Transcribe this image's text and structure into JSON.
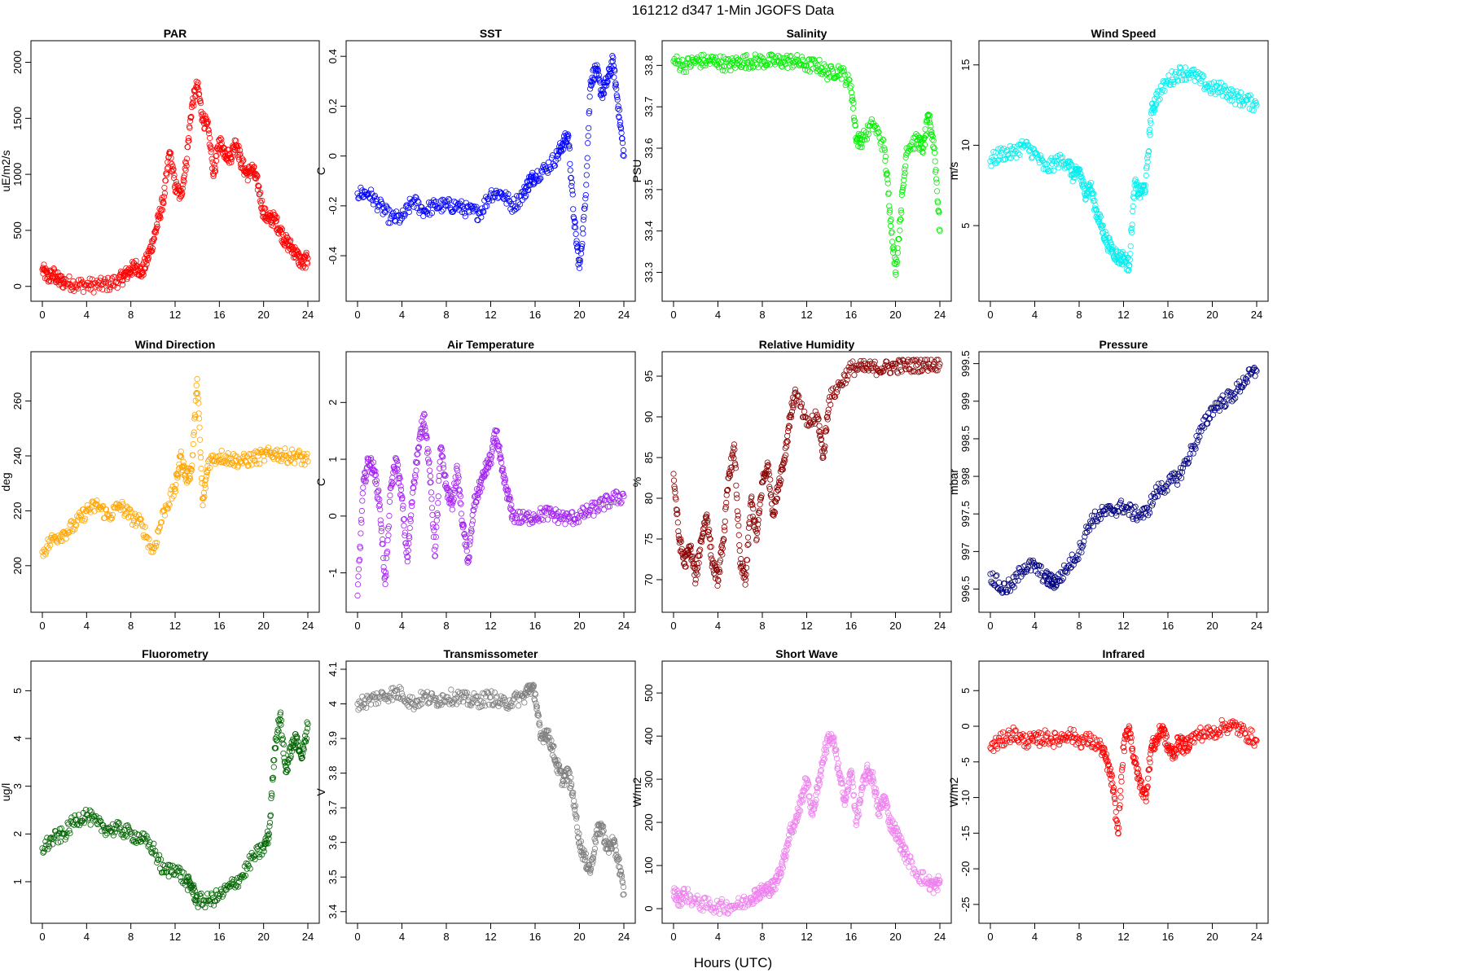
{
  "figure": {
    "title": "161212   d347   1-Min  JGOFS Data",
    "xlabel": "Hours (UTC)"
  },
  "chart_data": [
    {
      "type": "scatter",
      "title": "PAR",
      "ylabel": "uE/m2/s",
      "color": "#ff0000",
      "xlim": [
        0,
        24
      ],
      "ylim": [
        -60,
        2120
      ],
      "xticks": [
        0,
        4,
        8,
        12,
        16,
        20,
        24
      ],
      "yticks": [
        0,
        500,
        1000,
        1500,
        2000
      ],
      "series": [
        {
          "x": [
            0,
            0.5,
            1,
            1.5,
            2,
            3,
            4,
            5,
            6,
            7,
            7.5,
            8,
            8.5,
            9,
            9.5,
            10,
            10.5,
            11,
            11.5,
            12,
            12.5,
            13,
            13.5,
            14,
            14.5,
            15,
            15.5,
            16,
            16.5,
            17,
            17.5,
            18,
            18.5,
            19,
            19.5,
            20,
            20.5,
            21,
            21.5,
            22,
            22.5,
            23,
            23.5,
            24
          ],
          "y": [
            150,
            80,
            110,
            50,
            40,
            20,
            10,
            10,
            20,
            60,
            100,
            150,
            180,
            120,
            250,
            400,
            600,
            800,
            1200,
            900,
            800,
            1100,
            1600,
            1800,
            1500,
            1400,
            1000,
            1300,
            1200,
            1150,
            1300,
            1100,
            1000,
            1050,
            900,
            650,
            600,
            600,
            500,
            400,
            350,
            280,
            200,
            250
          ]
        }
      ]
    },
    {
      "type": "scatter",
      "title": "SST",
      "ylabel": "C",
      "color": "#0000ff",
      "xlim": [
        0,
        24
      ],
      "ylim": [
        -0.55,
        0.43
      ],
      "xticks": [
        0,
        4,
        8,
        12,
        16,
        20,
        24
      ],
      "yticks": [
        -0.4,
        -0.2,
        0.0,
        0.2,
        0.4
      ],
      "series": [
        {
          "x": [
            0,
            1,
            2,
            3,
            4,
            5,
            6,
            7,
            8,
            9,
            10,
            11,
            12,
            13,
            14,
            15,
            15.5,
            16,
            17,
            18,
            18.5,
            19,
            19.5,
            20,
            20.5,
            21,
            21.5,
            22,
            22.5,
            23,
            23.5,
            24
          ],
          "y": [
            -0.15,
            -0.15,
            -0.2,
            -0.25,
            -0.25,
            -0.18,
            -0.22,
            -0.2,
            -0.2,
            -0.2,
            -0.22,
            -0.23,
            -0.15,
            -0.15,
            -0.2,
            -0.15,
            -0.1,
            -0.08,
            -0.05,
            0.0,
            0.05,
            0.08,
            -0.25,
            -0.45,
            -0.2,
            0.3,
            0.35,
            0.25,
            0.3,
            0.38,
            0.2,
            0.0
          ]
        }
      ]
    },
    {
      "type": "scatter",
      "title": "Salinity",
      "ylabel": "PSU",
      "color": "#00ee00",
      "xlim": [
        0,
        24
      ],
      "ylim": [
        33.25,
        33.84
      ],
      "xticks": [
        0,
        4,
        8,
        12,
        16,
        20,
        24
      ],
      "yticks": [
        33.3,
        33.4,
        33.5,
        33.6,
        33.7,
        33.8
      ],
      "series": [
        {
          "x": [
            0,
            1,
            2,
            3,
            4,
            5,
            6,
            7,
            8,
            9,
            10,
            11,
            12,
            13,
            14,
            15,
            16,
            16.5,
            17,
            18,
            19,
            19.5,
            20,
            20.5,
            21,
            22,
            22.5,
            23,
            23.5,
            24
          ],
          "y": [
            33.81,
            33.8,
            33.81,
            33.81,
            33.81,
            33.8,
            33.81,
            33.81,
            33.81,
            33.81,
            33.81,
            33.81,
            33.8,
            33.8,
            33.78,
            33.79,
            33.75,
            33.62,
            33.62,
            33.66,
            33.6,
            33.45,
            33.3,
            33.45,
            33.6,
            33.62,
            33.6,
            33.68,
            33.6,
            33.4
          ]
        }
      ]
    },
    {
      "type": "scatter",
      "title": "Wind Speed",
      "ylabel": "m/s",
      "color": "#00eeee",
      "xlim": [
        0,
        24
      ],
      "ylim": [
        0.8,
        16.0
      ],
      "xticks": [
        0,
        4,
        8,
        12,
        16,
        20,
        24
      ],
      "yticks": [
        5,
        10,
        15
      ],
      "series": [
        {
          "x": [
            0,
            1,
            2,
            3,
            4,
            5,
            6,
            7,
            7.5,
            8,
            8.5,
            9,
            9.5,
            10,
            10.5,
            11,
            11.5,
            12,
            12.5,
            13,
            13.5,
            14,
            14.5,
            15,
            16,
            17,
            18,
            19,
            20,
            21,
            22,
            23,
            24
          ],
          "y": [
            9,
            9.5,
            9.5,
            10,
            9.5,
            8.5,
            9,
            9,
            8,
            8.5,
            7,
            7.5,
            6,
            5,
            4,
            3.5,
            3,
            3,
            2.5,
            7.5,
            7,
            7.5,
            12,
            13,
            14,
            14.5,
            14.5,
            14,
            13.5,
            13.5,
            13,
            12.8,
            12.5
          ]
        }
      ]
    },
    {
      "type": "scatter",
      "title": "Wind Direction",
      "ylabel": "deg",
      "color": "#ffa500",
      "xlim": [
        0,
        24
      ],
      "ylim": [
        186,
        275
      ],
      "xticks": [
        0,
        4,
        8,
        12,
        16,
        20,
        24
      ],
      "yticks": [
        200,
        220,
        240,
        260
      ],
      "series": [
        {
          "x": [
            0,
            1,
            2,
            3,
            4,
            5,
            6,
            7,
            8,
            9,
            10,
            11,
            12,
            12.5,
            13,
            13.5,
            14,
            14.5,
            15,
            16,
            17,
            18,
            19,
            20,
            21,
            22,
            23,
            24
          ],
          "y": [
            205,
            210,
            212,
            215,
            220,
            222,
            218,
            222,
            218,
            215,
            205,
            220,
            228,
            240,
            232,
            235,
            268,
            222,
            238,
            240,
            239,
            238,
            239,
            240,
            241,
            240,
            240,
            238
          ]
        }
      ]
    },
    {
      "type": "scatter",
      "title": "Air Temperature",
      "ylabel": "C",
      "color": "#a020f0",
      "xlim": [
        0,
        24
      ],
      "ylim": [
        -1.55,
        2.75
      ],
      "xticks": [
        0,
        4,
        8,
        12,
        16,
        20,
        24
      ],
      "yticks": [
        -1,
        0,
        1,
        2
      ],
      "series": [
        {
          "x": [
            0,
            0.5,
            1,
            1.5,
            2,
            2.5,
            3,
            3.5,
            4,
            4.5,
            5,
            5.5,
            6,
            6.5,
            7,
            7.5,
            8,
            8.5,
            9,
            9.5,
            10,
            10.5,
            11,
            11.5,
            12,
            12.5,
            13,
            13.5,
            14,
            15,
            16,
            17,
            18,
            19,
            20,
            21,
            22,
            23,
            24
          ],
          "y": [
            -1.4,
            0.5,
            1.0,
            0.8,
            0.2,
            -1.2,
            0.5,
            1.0,
            0.3,
            -0.8,
            0.5,
            1.2,
            1.8,
            0.8,
            -0.7,
            1.2,
            0.5,
            0.2,
            0.8,
            -0.2,
            -0.8,
            0.2,
            0.5,
            0.8,
            1.0,
            1.5,
            0.8,
            0.4,
            0.0,
            -0.05,
            0.0,
            0.05,
            0.0,
            -0.05,
            0.0,
            0.1,
            0.2,
            0.3,
            0.35
          ]
        }
      ]
    },
    {
      "type": "scatter",
      "title": "Relative Humidity",
      "ylabel": "%",
      "color": "#8b0000",
      "xlim": [
        0,
        24
      ],
      "ylim": [
        67,
        97
      ],
      "xticks": [
        0,
        4,
        8,
        12,
        16,
        20,
        24
      ],
      "yticks": [
        70,
        75,
        80,
        85,
        90,
        95
      ],
      "series": [
        {
          "x": [
            0,
            0.5,
            1,
            1.5,
            2,
            2.5,
            3,
            3.5,
            4,
            4.5,
            5,
            5.5,
            6,
            6.5,
            7,
            7.5,
            8,
            8.5,
            9,
            9.5,
            10,
            10.5,
            11,
            12,
            13,
            13.5,
            14,
            15,
            16,
            17,
            18,
            19,
            20,
            21,
            22,
            23,
            24
          ],
          "y": [
            83,
            75,
            72,
            74,
            70,
            75,
            78,
            72,
            70,
            75,
            83,
            86,
            72,
            70,
            80,
            75,
            82,
            84,
            78,
            82,
            85,
            90,
            93,
            89,
            90,
            85,
            92,
            94,
            96,
            96,
            96,
            96,
            96.2,
            96.3,
            96.4,
            96.5,
            96.5
          ]
        }
      ]
    },
    {
      "type": "scatter",
      "title": "Pressure",
      "ylabel": "mbar",
      "color": "#000080",
      "xlim": [
        0,
        24
      ],
      "ylim": [
        996.3,
        999.55
      ],
      "xticks": [
        0,
        4,
        8,
        12,
        16,
        20,
        24
      ],
      "yticks": [
        996.5,
        997.0,
        997.5,
        998.0,
        998.5,
        999.0,
        999.5
      ],
      "series": [
        {
          "x": [
            0,
            1,
            2,
            3,
            4,
            5,
            5.5,
            6,
            7,
            8,
            9,
            10,
            11,
            12,
            13,
            14,
            15,
            16,
            17,
            18,
            19,
            20,
            21,
            22,
            23,
            24
          ],
          "y": [
            996.7,
            996.5,
            996.55,
            996.8,
            996.8,
            996.65,
            996.6,
            996.6,
            996.8,
            997.0,
            997.4,
            997.5,
            997.55,
            997.6,
            997.5,
            997.5,
            997.8,
            997.9,
            998.0,
            998.3,
            998.6,
            998.9,
            999.0,
            999.1,
            999.3,
            999.4
          ]
        }
      ]
    },
    {
      "type": "scatter",
      "title": "Fluorometry",
      "ylabel": "ug/l",
      "color": "#006400",
      "xlim": [
        0,
        24
      ],
      "ylim": [
        0.3,
        5.45
      ],
      "xticks": [
        0,
        4,
        8,
        12,
        16,
        20,
        24
      ],
      "yticks": [
        1,
        2,
        3,
        4,
        5
      ],
      "series": [
        {
          "x": [
            0,
            1,
            2,
            3,
            4,
            5,
            6,
            7,
            8,
            9,
            10,
            11,
            12,
            13,
            13.5,
            14,
            15,
            16,
            17,
            18,
            19,
            20,
            20.5,
            21,
            21.5,
            22,
            22.5,
            23,
            23.5,
            24
          ],
          "y": [
            1.7,
            1.9,
            2.0,
            2.3,
            2.4,
            2.2,
            2.1,
            2.1,
            2.0,
            1.9,
            1.7,
            1.2,
            1.3,
            1.0,
            0.9,
            0.6,
            0.6,
            0.7,
            0.9,
            1.1,
            1.5,
            1.7,
            2.0,
            3.8,
            4.5,
            3.3,
            3.8,
            4.0,
            3.6,
            4.3
          ]
        }
      ]
    },
    {
      "type": "scatter",
      "title": "Transmissometer",
      "ylabel": "V",
      "color": "#808080",
      "xlim": [
        0,
        24
      ],
      "ylim": [
        3.39,
        4.1
      ],
      "xticks": [
        0,
        4,
        8,
        12,
        16,
        20,
        24
      ],
      "yticks": [
        3.4,
        3.5,
        3.6,
        3.7,
        3.8,
        3.9,
        4.0,
        4.1
      ],
      "series": [
        {
          "x": [
            0,
            1,
            2,
            3,
            4,
            5,
            6,
            7,
            8,
            9,
            10,
            11,
            12,
            13,
            14,
            15,
            15.5,
            16,
            16.5,
            17,
            17.5,
            18,
            18.5,
            19,
            19.5,
            20,
            20.5,
            21,
            21.5,
            22,
            22.5,
            23,
            23.5,
            24
          ],
          "y": [
            4.0,
            4.01,
            4.02,
            4.03,
            4.03,
            4.0,
            4.02,
            4.01,
            4.02,
            4.02,
            4.01,
            4.01,
            4.02,
            4.0,
            4.01,
            4.02,
            4.05,
            4.03,
            3.9,
            3.92,
            3.88,
            3.82,
            3.78,
            3.8,
            3.72,
            3.6,
            3.55,
            3.52,
            3.62,
            3.65,
            3.58,
            3.6,
            3.55,
            3.45
          ]
        }
      ]
    },
    {
      "type": "scatter",
      "title": "Short Wave",
      "ylabel": "W/m2",
      "color": "#ee82ee",
      "xlim": [
        0,
        24
      ],
      "ylim": [
        -15,
        555
      ],
      "xticks": [
        0,
        4,
        8,
        12,
        16,
        20,
        24
      ],
      "yticks": [
        0,
        100,
        200,
        300,
        400,
        500
      ],
      "series": [
        {
          "x": [
            0,
            0.5,
            1,
            2,
            3,
            4,
            5,
            6,
            7,
            7.5,
            8,
            8.5,
            9,
            9.5,
            10,
            10.5,
            11,
            11.5,
            12,
            12.5,
            13,
            13.5,
            14,
            14.5,
            15,
            15.5,
            16,
            16.5,
            17,
            17.5,
            18,
            18.5,
            19,
            19.5,
            20,
            20.5,
            21,
            22,
            23,
            23.5,
            24
          ],
          "y": [
            40,
            20,
            35,
            15,
            8,
            5,
            5,
            10,
            25,
            35,
            40,
            45,
            50,
            80,
            120,
            180,
            200,
            250,
            300,
            220,
            280,
            350,
            400,
            380,
            300,
            250,
            320,
            200,
            280,
            320,
            300,
            220,
            260,
            200,
            180,
            150,
            120,
            80,
            60,
            50,
            65
          ]
        }
      ]
    },
    {
      "type": "scatter",
      "title": "Infrared",
      "ylabel": "W/m2",
      "color": "#ff0000",
      "xlim": [
        0,
        24
      ],
      "ylim": [
        -26.5,
        8.0
      ],
      "xticks": [
        0,
        4,
        8,
        12,
        16,
        20,
        24
      ],
      "yticks": [
        -25,
        -20,
        -15,
        -10,
        -5,
        0,
        5
      ],
      "series": [
        {
          "x": [
            0,
            1,
            2,
            3,
            4,
            5,
            6,
            7,
            8,
            9,
            10,
            10.5,
            11,
            11.5,
            12,
            12.5,
            13,
            13.5,
            14,
            14.5,
            15,
            15.5,
            16,
            16.5,
            17,
            17.5,
            18,
            19,
            20,
            21,
            22,
            23,
            24
          ],
          "y": [
            -3,
            -2,
            -1,
            -2,
            -2,
            -1.5,
            -2,
            -1,
            -2,
            -2,
            -3,
            -5,
            -8,
            -15,
            -3,
            0,
            -5,
            -8,
            -10,
            -3,
            -2,
            0,
            -3,
            -4,
            -2,
            -3,
            -2,
            -1,
            -1,
            0,
            0,
            -1,
            -2
          ]
        }
      ]
    }
  ]
}
